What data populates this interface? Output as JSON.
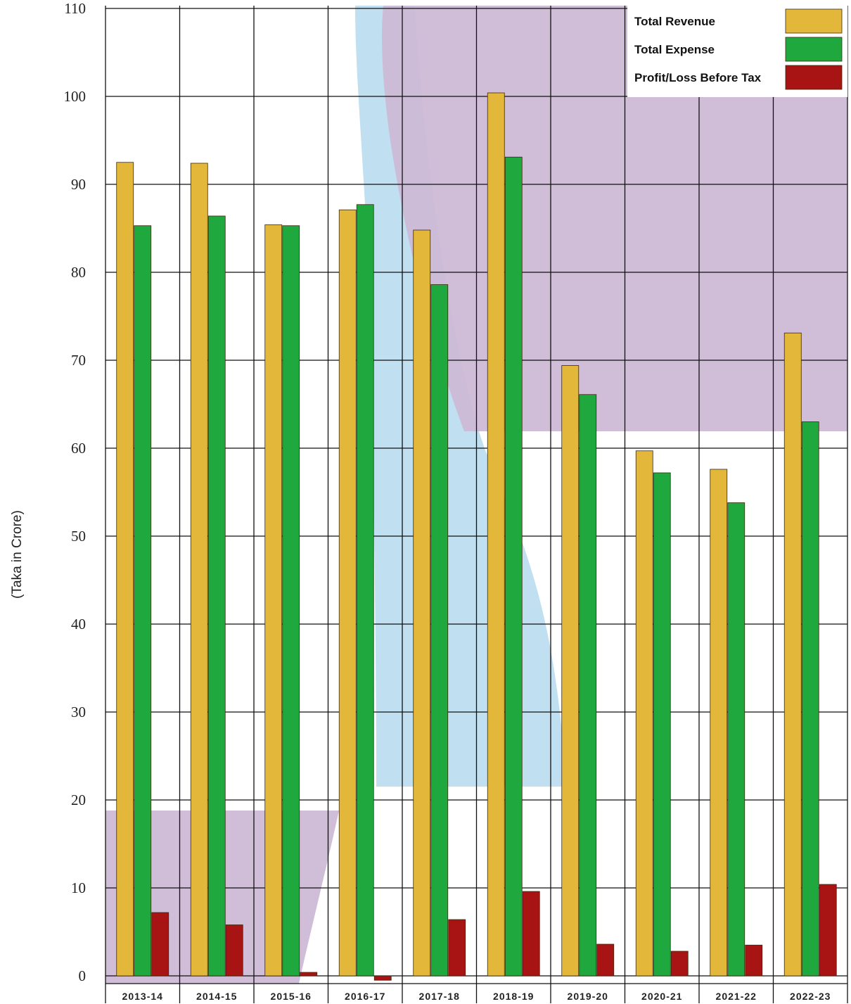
{
  "chart_data": {
    "type": "bar",
    "ylabel": "(Taka in Crore)",
    "xlabel": "",
    "ylim": [
      0,
      110
    ],
    "yticks": [
      0,
      10,
      20,
      30,
      40,
      50,
      60,
      70,
      80,
      90,
      100,
      110
    ],
    "grid": true,
    "legend_position": "top-right",
    "categories": [
      "2013-14",
      "2014-15",
      "2015-16",
      "2016-17",
      "2017-18",
      "2018-19",
      "2019-20",
      "2020-21",
      "2021-22",
      "2022-23"
    ],
    "series": [
      {
        "name": "Total Revenue",
        "color": "#e3b83a",
        "values": [
          92.5,
          92.4,
          85.4,
          87.1,
          84.8,
          100.4,
          69.4,
          59.7,
          57.6,
          73.1
        ]
      },
      {
        "name": "Total Expense",
        "color": "#1fa83e",
        "values": [
          85.3,
          86.4,
          85.3,
          87.7,
          78.6,
          93.1,
          66.1,
          57.2,
          53.8,
          63.0
        ]
      },
      {
        "name": "Profit/Loss Before Tax",
        "color": "#a81313",
        "values": [
          7.2,
          5.8,
          0.4,
          -0.5,
          6.4,
          9.6,
          3.6,
          2.8,
          3.5,
          10.4
        ]
      }
    ]
  }
}
